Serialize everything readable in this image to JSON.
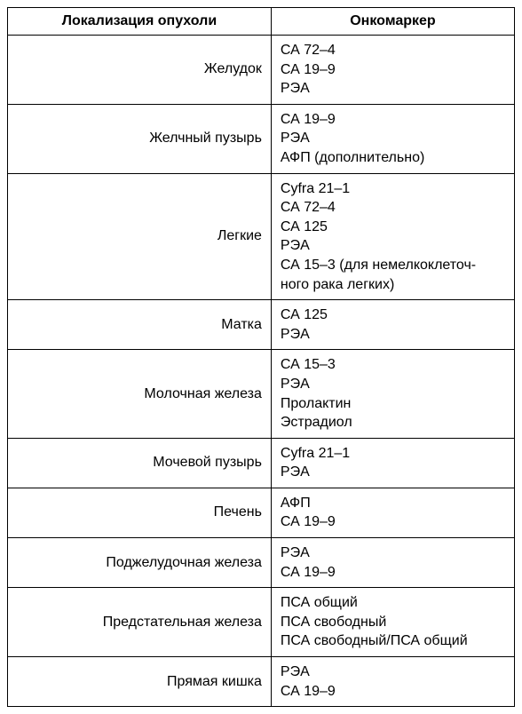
{
  "table": {
    "columns": [
      "Локализация опухоли",
      "Онкомаркер"
    ],
    "header_fontsize": 16,
    "body_fontsize": 16,
    "border_color": "#000000",
    "background_color": "#ffffff",
    "text_color": "#000000",
    "col_widths": [
      "52%",
      "48%"
    ],
    "col_align": [
      "right",
      "left"
    ],
    "rows": [
      {
        "location": "Желудок",
        "markers": [
          "СА 72–4",
          "СА 19–9",
          "РЭА"
        ]
      },
      {
        "location": "Желчный пузырь",
        "markers": [
          "СА 19–9",
          "РЭА",
          "АФП (дополнительно)"
        ]
      },
      {
        "location": "Легкие",
        "markers": [
          "Cyfra 21–1",
          "СА 72–4",
          "СА 125",
          "РЭА",
          "СА 15–3 (для немелкоклеточ-",
          "ного рака легких)"
        ]
      },
      {
        "location": "Матка",
        "markers": [
          "СА 125",
          "РЭА"
        ]
      },
      {
        "location": "Молочная железа",
        "markers": [
          "СА 15–3",
          "РЭА",
          "Пролактин",
          "Эстрадиол"
        ]
      },
      {
        "location": "Мочевой пузырь",
        "markers": [
          "Cyfra 21–1",
          "РЭА"
        ]
      },
      {
        "location": "Печень",
        "markers": [
          "АФП",
          "СА 19–9"
        ]
      },
      {
        "location": "Поджелудочная железа",
        "markers": [
          "РЭА",
          "СА 19–9"
        ]
      },
      {
        "location": "Предстательная железа",
        "markers": [
          "ПСА общий",
          "ПСА свободный",
          "ПСА свободный/ПСА общий"
        ]
      },
      {
        "location": "Прямая кишка",
        "markers": [
          "РЭА",
          "СА 19–9"
        ]
      }
    ]
  }
}
